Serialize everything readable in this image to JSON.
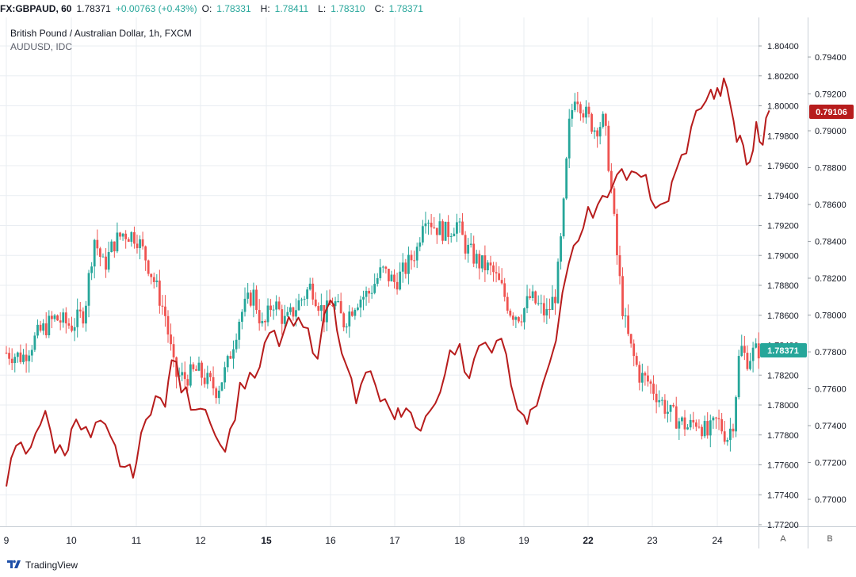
{
  "header": {
    "symbol": "FX:GBPAUD, 60",
    "last": "1.78371",
    "change": "+0.00763 (+0.43%)",
    "o_label": "O:",
    "o_value": "1.78331",
    "h_label": "H:",
    "h_value": "1.78411",
    "l_label": "L:",
    "l_value": "1.78310",
    "c_label": "C:",
    "c_value": "1.78371"
  },
  "legend": {
    "main": "British Pound / Australian Dollar, 1h, FXCM",
    "compare": "AUDUSD, IDC"
  },
  "scale_buttons": {
    "a": "A",
    "b": "B"
  },
  "footer": {
    "brand": "TradingView"
  },
  "colors": {
    "up": "#26a69a",
    "down": "#ef5350",
    "compare": "#b71c1c",
    "grid": "#e9edf2"
  },
  "chart_data": {
    "type": "candlestick+line",
    "x_ticks": [
      "9",
      "10",
      "11",
      "12",
      "15",
      "16",
      "17",
      "18",
      "19",
      "22",
      "23",
      "24"
    ],
    "left_axis": {
      "labels": [
        "1.80400",
        "1.80200",
        "1.80000",
        "1.79800",
        "1.79600",
        "1.79400",
        "1.79200",
        "1.79000",
        "1.78800",
        "1.78600",
        "1.78400",
        "1.78200",
        "1.78000",
        "1.77800",
        "1.77600",
        "1.77400",
        "1.77200"
      ],
      "ylim": [
        1.772,
        1.8052
      ]
    },
    "right_axis": {
      "labels": [
        "0.79400",
        "0.79200",
        "0.79000",
        "0.78800",
        "0.78600",
        "0.78400",
        "0.78200",
        "0.78000",
        "0.77800",
        "0.77600",
        "0.77400",
        "0.77200",
        "0.77000"
      ],
      "ylim": [
        0.7694,
        0.7953
      ]
    },
    "last_badges": {
      "left": "1.78371",
      "right": "0.79106"
    },
    "gbpaud_close": [
      [
        9.0,
        1.7835
      ],
      [
        9.25,
        1.7832
      ],
      [
        9.5,
        1.7848
      ],
      [
        9.75,
        1.7858
      ],
      [
        10.0,
        1.7853
      ],
      [
        10.2,
        1.7862
      ],
      [
        10.35,
        1.7912
      ],
      [
        10.5,
        1.7892
      ],
      [
        10.65,
        1.7908
      ],
      [
        10.8,
        1.7915
      ],
      [
        11.0,
        1.7913
      ],
      [
        11.15,
        1.7898
      ],
      [
        11.3,
        1.788
      ],
      [
        11.45,
        1.786
      ],
      [
        11.6,
        1.782
      ],
      [
        11.75,
        1.7818
      ],
      [
        11.95,
        1.7823
      ],
      [
        12.1,
        1.7816
      ],
      [
        12.25,
        1.781
      ],
      [
        12.4,
        1.7825
      ],
      [
        12.6,
        1.786
      ],
      [
        12.8,
        1.7875
      ],
      [
        12.95,
        1.785
      ],
      [
        13.1,
        1.787
      ],
      [
        13.3,
        1.7855
      ],
      [
        13.5,
        1.7868
      ],
      [
        13.7,
        1.788
      ],
      [
        13.9,
        1.786
      ],
      [
        14.05,
        1.787
      ],
      [
        14.2,
        1.7855
      ],
      [
        14.4,
        1.787
      ],
      [
        14.6,
        1.7875
      ],
      [
        14.8,
        1.789
      ],
      [
        15.0,
        1.7882
      ],
      [
        15.15,
        1.789
      ],
      [
        15.35,
        1.7905
      ],
      [
        15.45,
        1.793
      ],
      [
        15.6,
        1.792
      ],
      [
        15.8,
        1.7915
      ],
      [
        15.95,
        1.7922
      ],
      [
        16.1,
        1.7905
      ],
      [
        16.3,
        1.7895
      ],
      [
        16.5,
        1.789
      ],
      [
        16.65,
        1.7878
      ],
      [
        16.8,
        1.7862
      ],
      [
        16.95,
        1.786
      ],
      [
        17.1,
        1.7872
      ],
      [
        17.25,
        1.7865
      ],
      [
        17.35,
        1.786
      ],
      [
        17.5,
        1.7875
      ],
      [
        17.6,
        1.792
      ],
      [
        17.7,
        1.7985
      ],
      [
        17.8,
        1.801
      ],
      [
        17.95,
        1.7995
      ],
      [
        18.1,
        1.7985
      ],
      [
        18.25,
        1.799
      ],
      [
        18.35,
        1.795
      ],
      [
        18.45,
        1.79
      ],
      [
        18.55,
        1.786
      ],
      [
        18.65,
        1.784
      ],
      [
        18.8,
        1.782
      ],
      [
        18.95,
        1.7815
      ],
      [
        19.1,
        1.7805
      ],
      [
        19.25,
        1.7795
      ],
      [
        19.4,
        1.779
      ],
      [
        19.55,
        1.7785
      ],
      [
        19.7,
        1.779
      ],
      [
        19.85,
        1.778
      ],
      [
        20.0,
        1.779
      ],
      [
        20.15,
        1.7778
      ],
      [
        20.25,
        1.779
      ],
      [
        20.35,
        1.784
      ],
      [
        20.45,
        1.783
      ],
      [
        20.55,
        1.7835
      ],
      [
        20.65,
        1.7837
      ]
    ],
    "audusd_close": [
      [
        9.0,
        0.7707
      ],
      [
        9.15,
        0.773
      ],
      [
        9.3,
        0.7725
      ],
      [
        9.45,
        0.7738
      ],
      [
        9.6,
        0.7745
      ],
      [
        9.75,
        0.7728
      ],
      [
        9.9,
        0.7725
      ],
      [
        10.0,
        0.774
      ],
      [
        10.15,
        0.7738
      ],
      [
        10.3,
        0.7733
      ],
      [
        10.45,
        0.774
      ],
      [
        10.6,
        0.7732
      ],
      [
        10.75,
        0.772
      ],
      [
        10.9,
        0.7715
      ],
      [
        11.0,
        0.772
      ],
      [
        11.15,
        0.7742
      ],
      [
        11.3,
        0.776
      ],
      [
        11.45,
        0.7748
      ],
      [
        11.55,
        0.7778
      ],
      [
        11.7,
        0.776
      ],
      [
        11.85,
        0.7752
      ],
      [
        12.0,
        0.7752
      ],
      [
        12.15,
        0.7745
      ],
      [
        12.3,
        0.7728
      ],
      [
        12.45,
        0.7735
      ],
      [
        12.6,
        0.7762
      ],
      [
        12.75,
        0.7765
      ],
      [
        12.9,
        0.777
      ],
      [
        13.05,
        0.779
      ],
      [
        13.2,
        0.7785
      ],
      [
        13.35,
        0.7795
      ],
      [
        13.5,
        0.7795
      ],
      [
        13.65,
        0.779
      ],
      [
        13.8,
        0.778
      ],
      [
        14.0,
        0.781
      ],
      [
        14.1,
        0.7795
      ],
      [
        14.25,
        0.7775
      ],
      [
        14.4,
        0.775
      ],
      [
        14.55,
        0.777
      ],
      [
        14.7,
        0.776
      ],
      [
        14.85,
        0.7752
      ],
      [
        15.0,
        0.774
      ],
      [
        15.1,
        0.7748
      ],
      [
        15.25,
        0.7745
      ],
      [
        15.4,
        0.774
      ],
      [
        15.55,
        0.7748
      ],
      [
        15.7,
        0.7755
      ],
      [
        15.85,
        0.7782
      ],
      [
        16.0,
        0.7785
      ],
      [
        16.15,
        0.7765
      ],
      [
        16.3,
        0.778
      ],
      [
        16.5,
        0.7783
      ],
      [
        16.65,
        0.779
      ],
      [
        16.8,
        0.7765
      ],
      [
        17.0,
        0.7743
      ],
      [
        17.1,
        0.7745
      ],
      [
        17.3,
        0.7765
      ],
      [
        17.5,
        0.779
      ],
      [
        17.7,
        0.783
      ],
      [
        17.85,
        0.7838
      ],
      [
        18.0,
        0.7855
      ],
      [
        18.15,
        0.786
      ],
      [
        18.3,
        0.786
      ],
      [
        18.45,
        0.788
      ],
      [
        18.6,
        0.787
      ],
      [
        18.75,
        0.788
      ],
      [
        18.9,
        0.7876
      ],
      [
        19.05,
        0.7855
      ],
      [
        19.2,
        0.786
      ],
      [
        19.3,
        0.787
      ],
      [
        19.45,
        0.7885
      ],
      [
        19.6,
        0.79
      ],
      [
        19.75,
        0.7915
      ],
      [
        19.9,
        0.792
      ],
      [
        20.0,
        0.792
      ],
      [
        20.1,
        0.7925
      ],
      [
        20.2,
        0.7915
      ],
      [
        20.3,
        0.7895
      ],
      [
        20.4,
        0.7892
      ],
      [
        20.5,
        0.788
      ],
      [
        20.6,
        0.7905
      ],
      [
        20.7,
        0.7895
      ],
      [
        20.8,
        0.7911
      ]
    ]
  }
}
